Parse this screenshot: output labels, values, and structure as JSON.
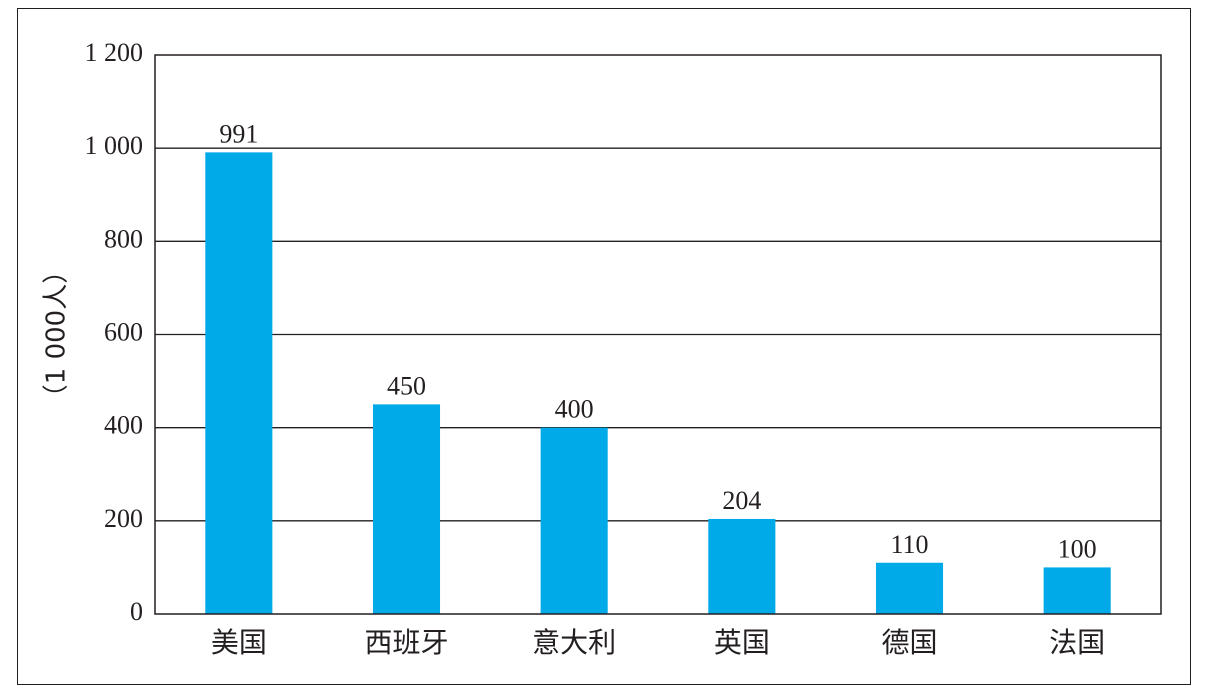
{
  "chart_data": {
    "type": "bar",
    "title": "",
    "xlabel": "",
    "ylabel": "（1 000人）",
    "categories": [
      "美国",
      "西班牙",
      "意大利",
      "英国",
      "德国",
      "法国"
    ],
    "values": [
      991,
      450,
      400,
      204,
      110,
      100
    ],
    "data_labels": [
      "991",
      "450",
      "400",
      "204",
      "110",
      "100"
    ],
    "ylim": [
      0,
      1200
    ],
    "yticks": [
      0,
      200,
      400,
      600,
      800,
      1000,
      1200
    ],
    "ytick_labels": [
      "0",
      "200",
      "400",
      "600",
      "800",
      "1 000",
      "1 200"
    ],
    "grid": true,
    "legend": "none",
    "bar_color": "#00a9e8",
    "grid_color": "#231f20"
  }
}
